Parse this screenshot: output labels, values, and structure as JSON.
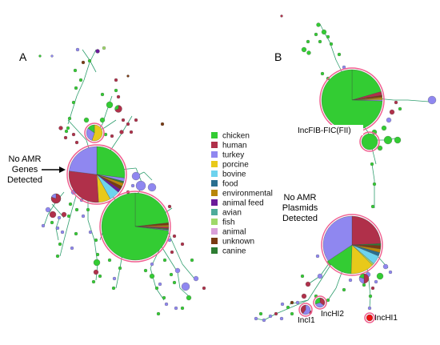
{
  "panels": {
    "a": {
      "label": "A",
      "annotation": [
        "No AMR",
        "Genes",
        "Detected"
      ]
    },
    "b": {
      "label": "B",
      "annotation": [
        "No AMR",
        "Plasmids",
        "Detected"
      ],
      "inc_labels": [
        "IncFIB-FIC(FII)",
        "IncI1",
        "IncHI2",
        "IncHI1"
      ]
    }
  },
  "legend": [
    {
      "label": "chicken",
      "color": "#33cc33"
    },
    {
      "label": "human",
      "color": "#b0304a"
    },
    {
      "label": "turkey",
      "color": "#8f87f0"
    },
    {
      "label": "porcine",
      "color": "#e8c91a"
    },
    {
      "label": "bovine",
      "color": "#6dd3ee"
    },
    {
      "label": "food",
      "color": "#2a6f8f"
    },
    {
      "label": "environmental",
      "color": "#b8860b"
    },
    {
      "label": "animal feed",
      "color": "#6a1b9a"
    },
    {
      "label": "avian",
      "color": "#4dab9a"
    },
    {
      "label": "fish",
      "color": "#9fd86a"
    },
    {
      "label": "animal",
      "color": "#d9a0d9"
    },
    {
      "label": "unknown",
      "color": "#7a3a12"
    },
    {
      "label": "canine",
      "color": "#2e7d32"
    }
  ],
  "colors": {
    "edge": "#2f9e6e",
    "halo": "#f06090",
    "text": "#111111",
    "red": "#ee1111"
  }
}
